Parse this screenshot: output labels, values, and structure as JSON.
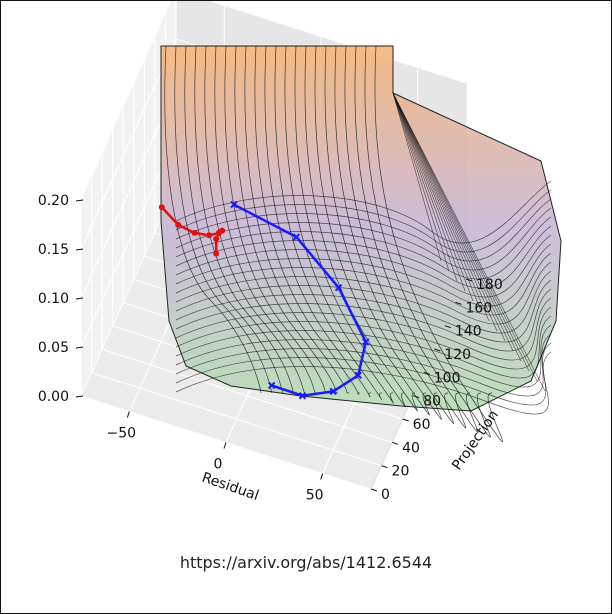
{
  "chart_data": {
    "type": "surface-3d",
    "x_axis": {
      "label": "Residual",
      "ticks": [
        -50,
        0,
        50
      ]
    },
    "y_axis": {
      "label": "Projection",
      "ticks": [
        0,
        20,
        40,
        60,
        80,
        100,
        120,
        140,
        160,
        180
      ]
    },
    "z_axis": {
      "label": "",
      "ticks": [
        "0.00",
        "0.05",
        "0.10",
        "0.15",
        "0.20"
      ],
      "range": [
        0,
        0.2
      ]
    },
    "surface_colormap": [
      "#f5b57a",
      "#c8b7d6",
      "#b6ddb3"
    ],
    "series": [
      {
        "color": "#e01010",
        "marker": "dot",
        "points": [
          {
            "residual": -25,
            "projection": -30,
            "value": 0.26
          },
          {
            "residual": -22,
            "projection": -10,
            "value": 0.22
          },
          {
            "residual": -19,
            "projection": 10,
            "value": 0.19
          },
          {
            "residual": -17,
            "projection": 30,
            "value": 0.165
          },
          {
            "residual": -16,
            "projection": 45,
            "value": 0.15
          },
          {
            "residual": -17,
            "projection": 55,
            "value": 0.14
          },
          {
            "residual": -20,
            "projection": 60,
            "value": 0.13
          },
          {
            "residual": -22,
            "projection": 62,
            "value": 0.12
          },
          {
            "residual": -22,
            "projection": 62,
            "value": 0.105
          }
        ]
      },
      {
        "color": "#1a1aff",
        "marker": "x",
        "points": [
          {
            "residual": 40,
            "projection": -60,
            "value": 0.155
          },
          {
            "residual": 45,
            "projection": -20,
            "value": 0.1
          },
          {
            "residual": 50,
            "projection": 20,
            "value": 0.06
          },
          {
            "residual": 52,
            "projection": 60,
            "value": 0.03
          },
          {
            "residual": 45,
            "projection": 100,
            "value": 0.012
          },
          {
            "residual": 20,
            "projection": 140,
            "value": 0.004
          },
          {
            "residual": -10,
            "projection": 170,
            "value": 0.001
          },
          {
            "residual": -45,
            "projection": 180,
            "value": 0.0
          }
        ]
      }
    ]
  },
  "caption": "https://arxiv.org/abs/1412.6544"
}
